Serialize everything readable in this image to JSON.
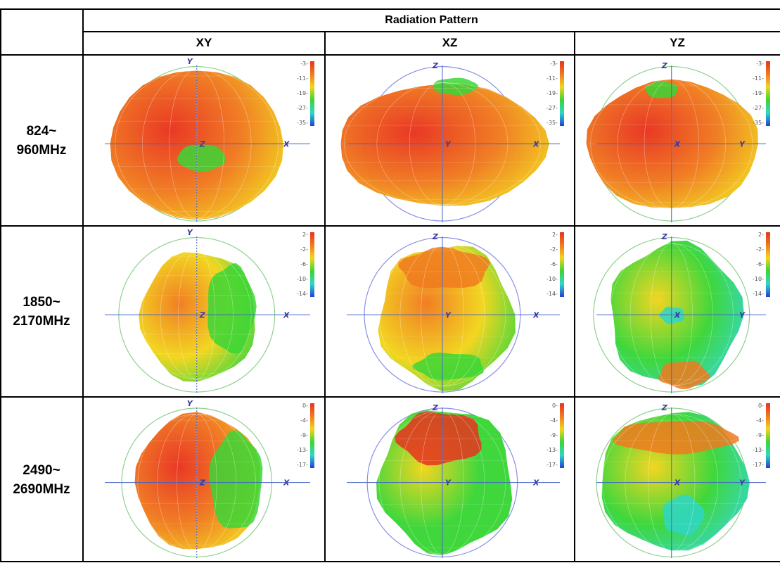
{
  "table": {
    "title": "Radiation  Pattern",
    "columns": [
      "XY",
      "XZ",
      "YZ"
    ],
    "rows": [
      {
        "label_line1": "824~",
        "label_line2": "960MHz",
        "scale_ticks": [
          "-3",
          "-11",
          "-19",
          "-27",
          "-35"
        ],
        "cells": [
          {
            "h": "Y",
            "v": "",
            "center": "Z",
            "end": "X"
          },
          {
            "h": "",
            "v": "Z",
            "center": "Y",
            "end": "X"
          },
          {
            "h": "",
            "v": "Z",
            "center": "X",
            "end": "Y"
          }
        ]
      },
      {
        "label_line1": "1850~",
        "label_line2": "2170MHz",
        "scale_ticks": [
          "2",
          "-2",
          "-6",
          "-10",
          "-14"
        ],
        "cells": [
          {
            "h": "Y",
            "v": "",
            "center": "Z",
            "end": "X"
          },
          {
            "h": "",
            "v": "Z",
            "center": "Y",
            "end": "X"
          },
          {
            "h": "",
            "v": "Z",
            "center": "X",
            "end": "Y"
          }
        ]
      },
      {
        "label_line1": "2490~",
        "label_line2": "2690MHz",
        "scale_ticks": [
          "0",
          "-4",
          "-9",
          "-13",
          "-17"
        ],
        "cells": [
          {
            "h": "Y",
            "v": "",
            "center": "Z",
            "end": "X"
          },
          {
            "h": "",
            "v": "Z",
            "center": "Y",
            "end": "X"
          },
          {
            "h": "",
            "v": "Z",
            "center": "X",
            "end": "Y"
          }
        ]
      }
    ]
  },
  "colors": {
    "red": "#e8321e",
    "orange": "#f07a1e",
    "yellow": "#f2d51a",
    "green": "#39d636",
    "cyan": "#2fd6c8",
    "sphere_xy": "#8fd08f",
    "sphere_xz": "#8a8fe6",
    "axis": "#4060c8"
  }
}
